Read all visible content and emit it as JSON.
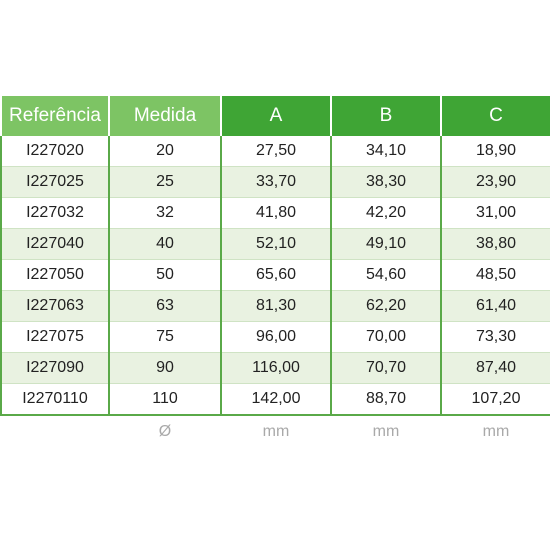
{
  "table": {
    "headers": [
      "Referência",
      "Medida",
      "A",
      "B",
      "C"
    ],
    "rows": [
      [
        "I227020",
        "20",
        "27,50",
        "34,10",
        "18,90"
      ],
      [
        "I227025",
        "25",
        "33,70",
        "38,30",
        "23,90"
      ],
      [
        "I227032",
        "32",
        "41,80",
        "42,20",
        "31,00"
      ],
      [
        "I227040",
        "40",
        "52,10",
        "49,10",
        "38,80"
      ],
      [
        "I227050",
        "50",
        "65,60",
        "54,60",
        "48,50"
      ],
      [
        "I227063",
        "63",
        "81,30",
        "62,20",
        "61,40"
      ],
      [
        "I227075",
        "75",
        "96,00",
        "70,00",
        "73,30"
      ],
      [
        "I227090",
        "90",
        "116,00",
        "70,70",
        "87,40"
      ],
      [
        "I2270110",
        "110",
        "142,00",
        "88,70",
        "107,20"
      ]
    ],
    "units": [
      "",
      "Ø",
      "mm",
      "mm",
      "mm"
    ]
  },
  "colors": {
    "header_light": "#7dc464",
    "header_dark": "#3fa535",
    "row_stripe": "#e9f2e1",
    "grid": "#5aa948"
  }
}
